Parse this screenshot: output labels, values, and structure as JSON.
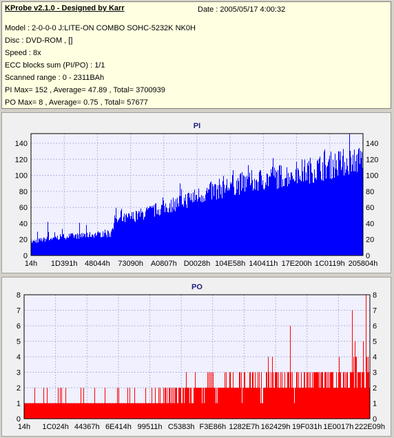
{
  "header": {
    "app_title": "KProbe v2.1.0 - Designed by Karr",
    "date": "Date : 2005/05/17 4:00:32",
    "model": "Model : 2-0-0-0 J:LITE-ON COMBO SOHC-5232K NK0H",
    "disc": "Disc : DVD-ROM ,  []",
    "speed": "Speed : 8x",
    "ecc": "ECC blocks sum (PI/PO) : 1/1",
    "range": "Scanned range : 0 - 2311BAh",
    "pi_summary": "PI Max= 152 , Average= 47.89 , Total= 3700939",
    "po_summary": "PO Max= 8 , Average= 0.75 , Total= 57677"
  },
  "colors": {
    "pi": "#0000ff",
    "po": "#ff0000",
    "plot_bg": "#f0f0ff",
    "grid": "#b4b4dc"
  },
  "chart_data": [
    {
      "type": "area",
      "title": "PI",
      "ylim": [
        0,
        152
      ],
      "yticks": [
        0,
        20,
        40,
        60,
        80,
        100,
        120,
        140
      ],
      "xticks": [
        "14h",
        "1D391h",
        "48044h",
        "73090h",
        "A0807h",
        "D0028h",
        "104E58h",
        "140411h",
        "17E200h",
        "1C0119h",
        "205804h"
      ],
      "grid": true,
      "trend": {
        "x_fraction": [
          0,
          0.05,
          0.1,
          0.15,
          0.2,
          0.24,
          0.25,
          0.3,
          0.4,
          0.5,
          0.6,
          0.7,
          0.8,
          0.9,
          0.95,
          1.0
        ],
        "y": [
          18,
          22,
          25,
          26,
          28,
          28,
          45,
          50,
          63,
          78,
          92,
          100,
          108,
          118,
          123,
          128
        ]
      },
      "max": 152,
      "spikes": [
        {
          "x_fraction": 0.05,
          "y": 42
        },
        {
          "x_fraction": 0.45,
          "y": 90
        },
        {
          "x_fraction": 0.96,
          "y": 152
        }
      ]
    },
    {
      "type": "bar",
      "title": "PO",
      "ylim": [
        0,
        8
      ],
      "yticks": [
        0,
        1,
        2,
        3,
        4,
        5,
        6,
        7,
        8
      ],
      "xticks": [
        "14h",
        "1C024h",
        "44367h",
        "6E414h",
        "99511h",
        "C5383h",
        "F3E86h",
        "1282E7h",
        "162429h",
        "19F031h",
        "1E0017h",
        "222E09h"
      ],
      "grid": true,
      "levels": {
        "x_fraction": [
          0,
          0.4,
          0.4,
          0.95,
          0.95,
          1.0
        ],
        "y": [
          1,
          1,
          2,
          3,
          4,
          4
        ]
      },
      "max": 8,
      "spikes": [
        {
          "x_fraction": 0.77,
          "y": 6
        },
        {
          "x_fraction": 0.95,
          "y": 7
        },
        {
          "x_fraction": 0.99,
          "y": 8
        }
      ]
    }
  ]
}
